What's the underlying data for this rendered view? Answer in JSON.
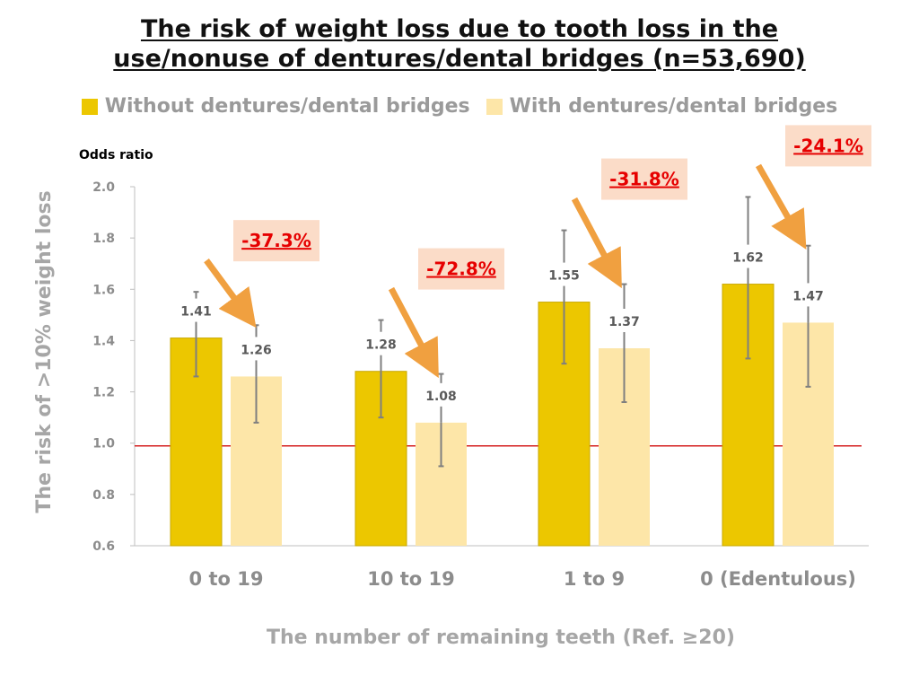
{
  "title_line1": "The risk of weight loss due to tooth loss in the",
  "title_line2": "use/nonuse of dentures/dental bridges (n=53,690)",
  "colors": {
    "without": "#ecc700",
    "without_border": "#c9a800",
    "with": "#fde6a8",
    "reference_line": "#d42020",
    "reduction_box": "#fbdcc8",
    "arrow": "#f0a040",
    "reduction_text": "#e60000"
  },
  "chart_data": {
    "type": "bar",
    "title": "The risk of weight loss due to tooth loss in the use/nonuse of dentures/dental bridges (n=53,690)",
    "xlabel": "The number of remaining teeth (Ref. ≥20)",
    "ylabel": "The risk of >10% weight loss",
    "y_unit_label": "Odds ratio",
    "ylim": [
      0.6,
      2.0
    ],
    "yticks": [
      "2.0",
      "1.8",
      "1.6",
      "1.4",
      "1.2",
      "1.0",
      "0.8",
      "0.6"
    ],
    "reference_line": 1.0,
    "legend_position": "top",
    "categories": [
      "0 to 19",
      "10 to 19",
      "1 to 9",
      "0 (Edentulous)"
    ],
    "series": [
      {
        "name": "Without dentures/dental bridges",
        "values": [
          1.41,
          1.28,
          1.55,
          1.62
        ],
        "labels": [
          "1.41",
          "1.28",
          "1.55",
          "1.62"
        ],
        "ci_low": [
          1.26,
          1.1,
          1.31,
          1.33
        ],
        "ci_high": [
          1.59,
          1.48,
          1.83,
          1.96
        ]
      },
      {
        "name": "With dentures/dental bridges",
        "values": [
          1.26,
          1.08,
          1.37,
          1.47
        ],
        "labels": [
          "1.26",
          "1.08",
          "1.37",
          "1.47"
        ],
        "ci_low": [
          1.08,
          0.91,
          1.16,
          1.22
        ],
        "ci_high": [
          1.46,
          1.27,
          1.62,
          1.77
        ]
      }
    ],
    "reductions": [
      "-37.3%",
      "-72.8%",
      "-31.8%",
      "-24.1%"
    ]
  }
}
